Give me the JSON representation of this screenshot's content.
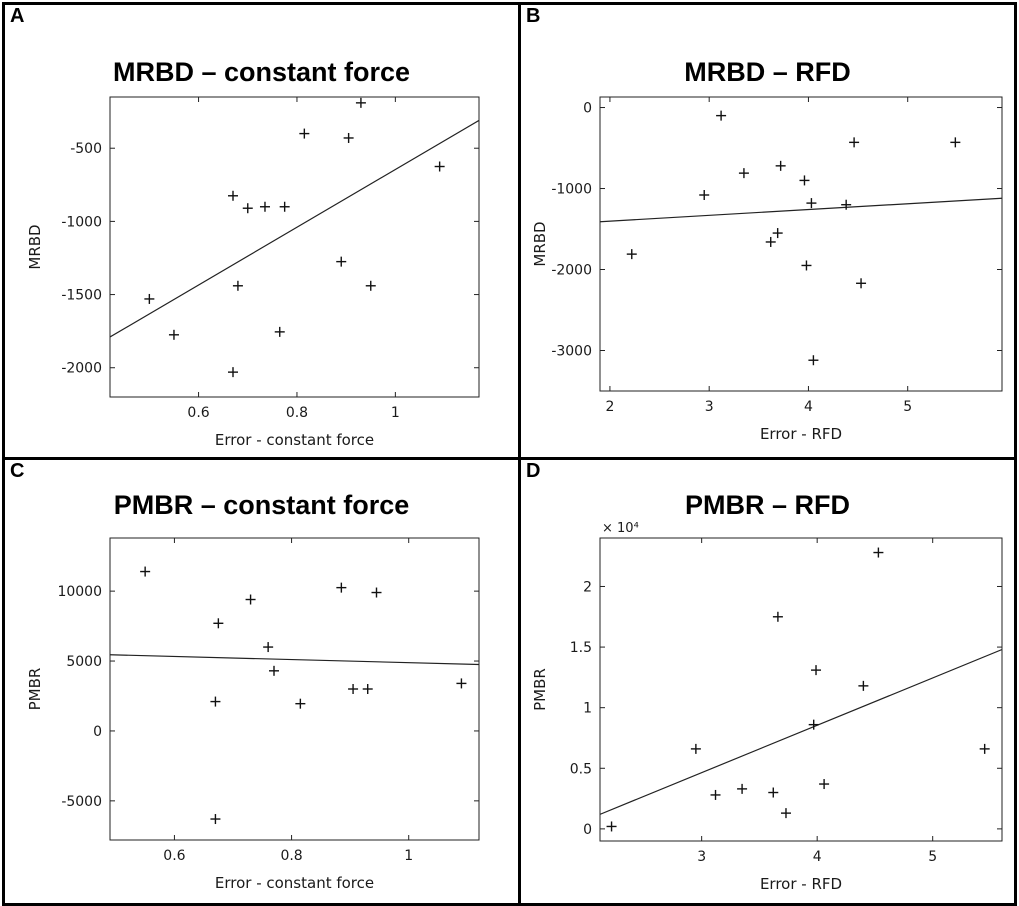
{
  "chart_data": [
    {
      "panel": "A",
      "type": "scatter",
      "title": "MRBD – constant force",
      "xlabel": "Error - constant force",
      "ylabel": "MRBD",
      "xlim": [
        0.42,
        1.17
      ],
      "ylim": [
        -2200,
        -150
      ],
      "xticks": [
        0.6,
        0.8,
        1
      ],
      "xtick_labels": [
        "0.6",
        "0.8",
        "1"
      ],
      "yticks": [
        -2000,
        -1500,
        -1000,
        -500
      ],
      "ytick_labels": [
        "-2000",
        "-1500",
        "-1000",
        "-500"
      ],
      "exponent_label": "",
      "points": [
        {
          "x": 0.5,
          "y": -1530
        },
        {
          "x": 0.55,
          "y": -1775
        },
        {
          "x": 0.67,
          "y": -2030
        },
        {
          "x": 0.67,
          "y": -825
        },
        {
          "x": 0.68,
          "y": -1440
        },
        {
          "x": 0.7,
          "y": -910
        },
        {
          "x": 0.735,
          "y": -900
        },
        {
          "x": 0.765,
          "y": -1755
        },
        {
          "x": 0.775,
          "y": -900
        },
        {
          "x": 0.815,
          "y": -400
        },
        {
          "x": 0.89,
          "y": -1275
        },
        {
          "x": 0.905,
          "y": -430
        },
        {
          "x": 0.93,
          "y": -190
        },
        {
          "x": 0.95,
          "y": -1440
        },
        {
          "x": 1.09,
          "y": -625
        }
      ],
      "fit_line": [
        {
          "x": 0.42,
          "y": -1790
        },
        {
          "x": 1.17,
          "y": -310
        }
      ],
      "grid": false
    },
    {
      "panel": "B",
      "type": "scatter",
      "title": "MRBD – RFD",
      "xlabel": "Error - RFD",
      "ylabel": "MRBD",
      "xlim": [
        1.9,
        5.95
      ],
      "ylim": [
        -3500,
        130
      ],
      "xticks": [
        2,
        3,
        4,
        5
      ],
      "xtick_labels": [
        "2",
        "3",
        "4",
        "5"
      ],
      "yticks": [
        -3000,
        -2000,
        -1000,
        0
      ],
      "ytick_labels": [
        "-3000",
        "-2000",
        "-1000",
        "0"
      ],
      "exponent_label": "",
      "points": [
        {
          "x": 2.22,
          "y": -1810
        },
        {
          "x": 2.95,
          "y": -1080
        },
        {
          "x": 3.12,
          "y": -100
        },
        {
          "x": 3.35,
          "y": -810
        },
        {
          "x": 3.62,
          "y": -1660
        },
        {
          "x": 3.69,
          "y": -1550
        },
        {
          "x": 3.72,
          "y": -720
        },
        {
          "x": 3.96,
          "y": -900
        },
        {
          "x": 3.98,
          "y": -1950
        },
        {
          "x": 4.03,
          "y": -1180
        },
        {
          "x": 4.05,
          "y": -3120
        },
        {
          "x": 4.38,
          "y": -1200
        },
        {
          "x": 4.46,
          "y": -430
        },
        {
          "x": 4.53,
          "y": -2170
        },
        {
          "x": 5.48,
          "y": -430
        }
      ],
      "fit_line": [
        {
          "x": 1.9,
          "y": -1410
        },
        {
          "x": 5.95,
          "y": -1120
        }
      ],
      "grid": false
    },
    {
      "panel": "C",
      "type": "scatter",
      "title": "PMBR – constant force",
      "xlabel": "Error - constant force",
      "ylabel": "PMBR",
      "xlim": [
        0.49,
        1.12
      ],
      "ylim": [
        -7800,
        13800
      ],
      "xticks": [
        0.6,
        0.8,
        1
      ],
      "xtick_labels": [
        "0.6",
        "0.8",
        "1"
      ],
      "yticks": [
        -5000,
        0,
        5000,
        10000
      ],
      "ytick_labels": [
        "-5000",
        "0",
        "5000",
        "10000"
      ],
      "exponent_label": "",
      "points": [
        {
          "x": 0.55,
          "y": 11400
        },
        {
          "x": 0.67,
          "y": 2100
        },
        {
          "x": 0.67,
          "y": -6300
        },
        {
          "x": 0.675,
          "y": 7700
        },
        {
          "x": 0.73,
          "y": 9400
        },
        {
          "x": 0.76,
          "y": 6000
        },
        {
          "x": 0.77,
          "y": 4300
        },
        {
          "x": 0.815,
          "y": 1950
        },
        {
          "x": 0.885,
          "y": 10250
        },
        {
          "x": 0.905,
          "y": 3000
        },
        {
          "x": 0.93,
          "y": 3000
        },
        {
          "x": 0.945,
          "y": 9900
        },
        {
          "x": 1.09,
          "y": 3400
        }
      ],
      "fit_line": [
        {
          "x": 0.49,
          "y": 5450
        },
        {
          "x": 1.12,
          "y": 4750
        }
      ],
      "grid": false
    },
    {
      "panel": "D",
      "type": "scatter",
      "title": "PMBR – RFD",
      "xlabel": "Error - RFD",
      "ylabel": "PMBR",
      "xlim": [
        2.12,
        5.6
      ],
      "ylim": [
        -0.1,
        2.4
      ],
      "xticks": [
        3,
        4,
        5
      ],
      "xtick_labels": [
        "3",
        "4",
        "5"
      ],
      "yticks": [
        0,
        0.5,
        1,
        1.5,
        2
      ],
      "ytick_labels": [
        "0",
        "0.5",
        "1",
        "1.5",
        "2"
      ],
      "exponent_label": "× 10⁴",
      "points": [
        {
          "x": 2.22,
          "y": 0.02
        },
        {
          "x": 2.95,
          "y": 0.66
        },
        {
          "x": 3.12,
          "y": 0.28
        },
        {
          "x": 3.35,
          "y": 0.33
        },
        {
          "x": 3.62,
          "y": 0.3
        },
        {
          "x": 3.66,
          "y": 1.75
        },
        {
          "x": 3.73,
          "y": 0.13
        },
        {
          "x": 3.97,
          "y": 0.86
        },
        {
          "x": 3.99,
          "y": 1.31
        },
        {
          "x": 4.06,
          "y": 0.37
        },
        {
          "x": 4.4,
          "y": 1.18
        },
        {
          "x": 4.53,
          "y": 2.28
        },
        {
          "x": 5.45,
          "y": 0.66
        }
      ],
      "fit_line": [
        {
          "x": 2.12,
          "y": 0.12
        },
        {
          "x": 5.6,
          "y": 1.48
        }
      ],
      "grid": false
    }
  ]
}
